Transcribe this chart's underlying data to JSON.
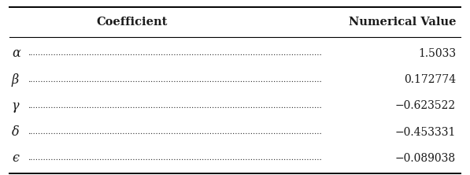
{
  "headers": [
    "Coefficient",
    "Numerical Value"
  ],
  "rows": [
    [
      "α",
      "1.5033"
    ],
    [
      "β",
      "0.172774"
    ],
    [
      "γ",
      "−0.623522"
    ],
    [
      "δ",
      "−0.453331"
    ],
    [
      "ϵ",
      "−0.089038"
    ]
  ],
  "bg_color": "#ffffff",
  "text_color": "#1a1a1a",
  "fontsize": 10,
  "header_fontsize": 10.5,
  "dots": "..................................................................................................................."
}
